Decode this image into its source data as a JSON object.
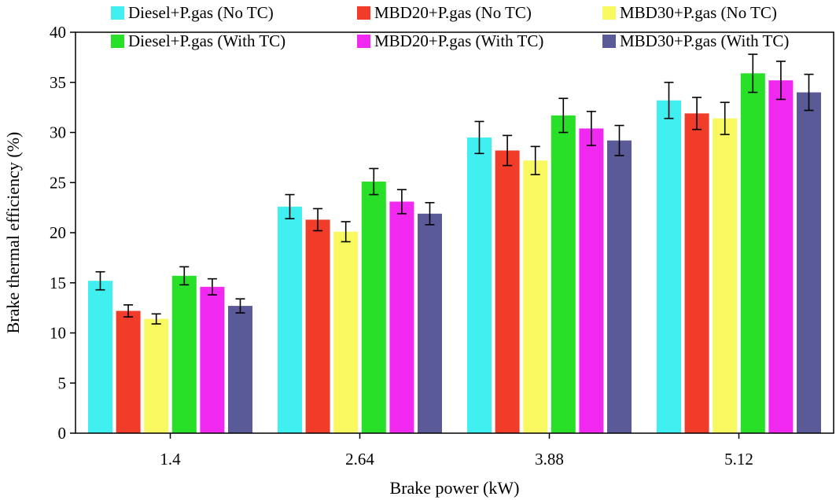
{
  "chart_data": {
    "type": "bar",
    "xlabel": "Brake power (kW)",
    "ylabel": "Brake thermal efficiency (%)",
    "ylim": [
      0,
      40
    ],
    "yticks": [
      0,
      5,
      10,
      15,
      20,
      25,
      30,
      35,
      40
    ],
    "categories": [
      "1.4",
      "2.64",
      "3.88",
      "5.12"
    ],
    "error_bars": true,
    "legend_position": "top",
    "series": [
      {
        "name": "Diesel+P.gas (No TC)",
        "color": "#40f0f0",
        "values": [
          15.2,
          22.6,
          29.5,
          33.2
        ],
        "errors": [
          0.9,
          1.2,
          1.6,
          1.8
        ]
      },
      {
        "name": "MBD20+P.gas (No TC)",
        "color": "#f03c28",
        "values": [
          12.2,
          21.3,
          28.2,
          31.9
        ],
        "errors": [
          0.6,
          1.1,
          1.5,
          1.6
        ]
      },
      {
        "name": "MBD30+P.gas (No TC)",
        "color": "#f8f860",
        "values": [
          11.4,
          20.1,
          27.2,
          31.4
        ],
        "errors": [
          0.5,
          1.0,
          1.4,
          1.6
        ]
      },
      {
        "name": "Diesel+P.gas (With TC)",
        "color": "#28e028",
        "values": [
          15.7,
          25.1,
          31.7,
          35.9
        ],
        "errors": [
          0.9,
          1.3,
          1.7,
          1.9
        ]
      },
      {
        "name": "MBD20+P.gas (With TC)",
        "color": "#f028f0",
        "values": [
          14.6,
          23.1,
          30.4,
          35.2
        ],
        "errors": [
          0.8,
          1.2,
          1.7,
          1.9
        ]
      },
      {
        "name": "MBD30+P.gas (With TC)",
        "color": "#5a5a98",
        "values": [
          12.7,
          21.9,
          29.2,
          34.0
        ],
        "errors": [
          0.7,
          1.1,
          1.5,
          1.8
        ]
      }
    ]
  }
}
